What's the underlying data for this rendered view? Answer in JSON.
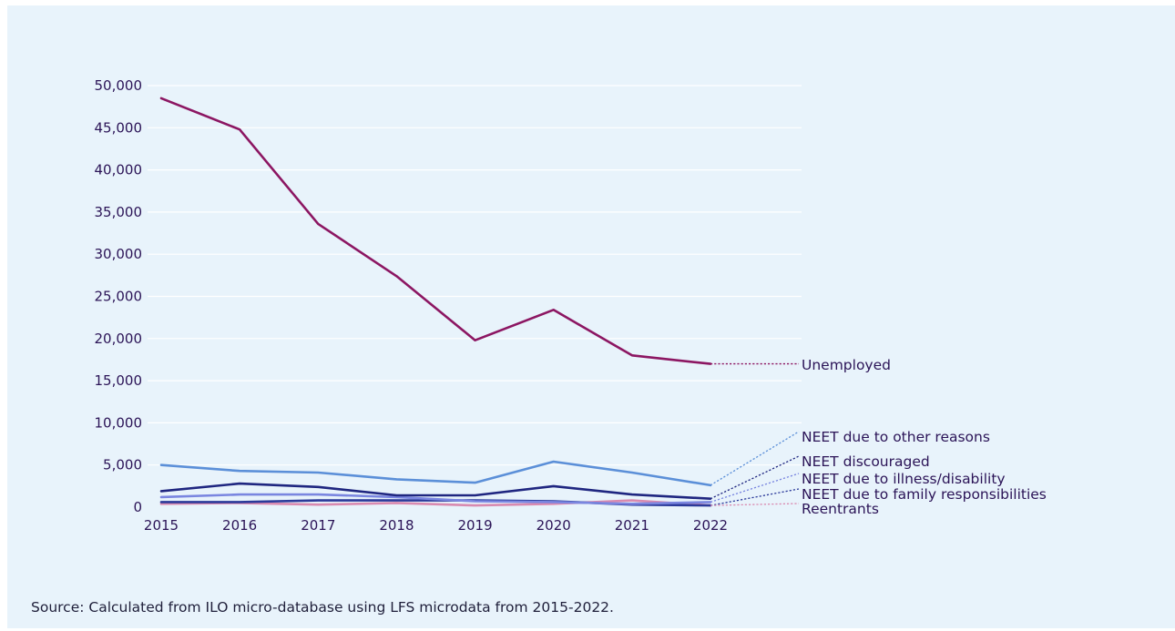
{
  "chart_data": {
    "type": "line",
    "title": "",
    "xlabel": "",
    "ylabel": "",
    "x": [
      "2015",
      "2016",
      "2017",
      "2018",
      "2019",
      "2020",
      "2021",
      "2022"
    ],
    "ylim": [
      0,
      50000
    ],
    "yticks": [
      "0",
      "5,000",
      "10,000",
      "15,000",
      "20,000",
      "25,000",
      "30,000",
      "35,000",
      "40,000",
      "45,000",
      "50,000"
    ],
    "grid": "horizontal",
    "legend": "direct labels at line ends (right)",
    "series": [
      {
        "name": "Unemployed",
        "color": "#8c1662",
        "values": [
          48500,
          44800,
          33600,
          27400,
          19800,
          23400,
          18000,
          17000
        ]
      },
      {
        "name": "NEET due to other reasons",
        "color": "#5b8fd8",
        "values": [
          5000,
          4300,
          4100,
          3300,
          2900,
          5400,
          4100,
          2600
        ]
      },
      {
        "name": "NEET discouraged",
        "color": "#1f2680",
        "values": [
          1900,
          2800,
          2400,
          1400,
          1400,
          2500,
          1500,
          1000
        ]
      },
      {
        "name": "NEET due to illness/disability",
        "color": "#7a86e0",
        "values": [
          1200,
          1500,
          1500,
          1200,
          700,
          600,
          400,
          600
        ]
      },
      {
        "name": "NEET due to family responsibilities",
        "color": "#2b3a9a",
        "values": [
          600,
          600,
          800,
          800,
          800,
          700,
          300,
          200
        ]
      },
      {
        "name": "Reentrants",
        "color": "#d98ab0",
        "values": [
          400,
          500,
          300,
          500,
          200,
          400,
          800,
          200
        ]
      }
    ]
  },
  "footer": {
    "source": "Source: Calculated from ILO micro-database using LFS microdata from 2015-2022."
  }
}
